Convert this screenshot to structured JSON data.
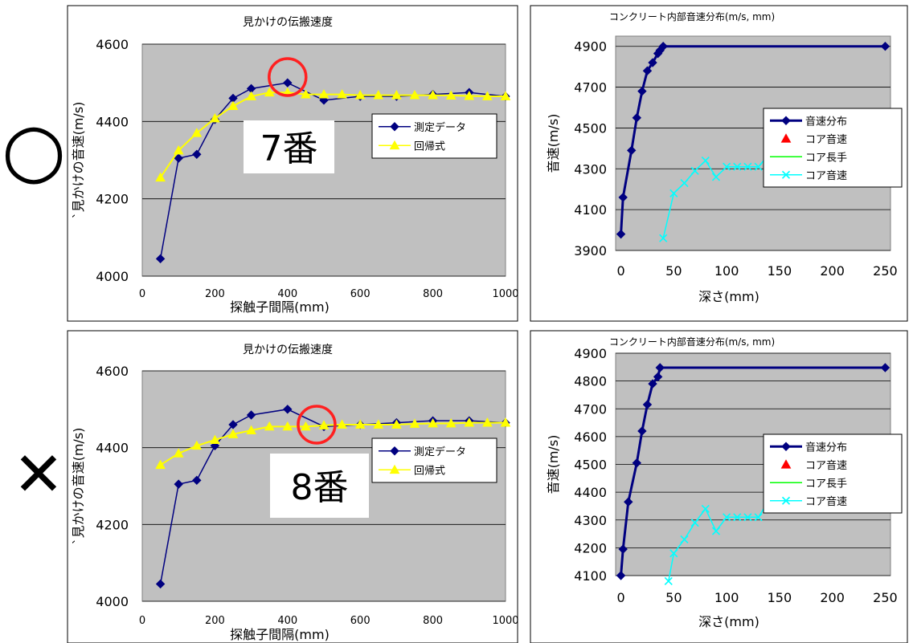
{
  "markers": {
    "good": "○",
    "bad": "✕"
  },
  "chart_data": [
    {
      "id": "c1",
      "type": "line",
      "title": "見かけの伝搬速度",
      "xlabel": "探触子間隔(mm)",
      "ylabel": "`見かけの音速(m/s)",
      "xlim": [
        0,
        1000
      ],
      "ylim": [
        4000,
        4600
      ],
      "xticks": [
        0,
        200,
        400,
        600,
        800,
        1000
      ],
      "yticks": [
        4000,
        4200,
        4400,
        4600
      ],
      "grid": true,
      "legend": "top-right",
      "series": [
        {
          "name": "測定データ",
          "color": "#000080",
          "marker": "diamond",
          "x": [
            50,
            100,
            150,
            200,
            250,
            300,
            400,
            500,
            600,
            700,
            800,
            900,
            1000
          ],
          "y": [
            4045,
            4305,
            4315,
            4405,
            4460,
            4485,
            4500,
            4455,
            4465,
            4465,
            4470,
            4475,
            4465
          ]
        },
        {
          "name": "回帰式",
          "color": "#ffff00",
          "marker": "triangle",
          "x": [
            50,
            100,
            150,
            200,
            250,
            300,
            350,
            400,
            450,
            500,
            550,
            600,
            650,
            700,
            750,
            800,
            850,
            900,
            950,
            1000
          ],
          "y": [
            4255,
            4325,
            4370,
            4408,
            4440,
            4465,
            4475,
            4475,
            4470,
            4470,
            4470,
            4468,
            4468,
            4468,
            4468,
            4468,
            4467,
            4466,
            4465,
            4465
          ]
        }
      ],
      "annotation": {
        "label": "7番",
        "circle_x": 400,
        "circle_y": 4515
      }
    },
    {
      "id": "c2",
      "type": "line",
      "title": "コンクリート内部音速分布(m/s, mm)",
      "xlabel": "深さ(mm)",
      "ylabel": "音速(m/s)",
      "xlim": [
        -5,
        255
      ],
      "ylim": [
        3900,
        4950
      ],
      "xticks": [
        0,
        50,
        100,
        150,
        200,
        250
      ],
      "yticks": [
        3900,
        4100,
        4300,
        4500,
        4700,
        4900
      ],
      "grid": true,
      "legend": "right",
      "series": [
        {
          "name": "音速分布",
          "color": "#000080",
          "marker": "diamond",
          "x": [
            0,
            2,
            10,
            15,
            20,
            25,
            30,
            35,
            37,
            40,
            250
          ],
          "y": [
            3980,
            4160,
            4390,
            4550,
            4680,
            4780,
            4820,
            4865,
            4880,
            4900,
            4900
          ]
        },
        {
          "name": "コア音速",
          "color": "#ff0000",
          "marker": "triangle",
          "x": [],
          "y": []
        },
        {
          "name": "コア長手",
          "color": "#00ff00",
          "marker": "none",
          "x": [],
          "y": []
        },
        {
          "name": "コア音速",
          "color": "#00ffff",
          "marker": "x",
          "x": [
            40,
            50,
            60,
            70,
            80,
            90,
            100,
            110,
            120,
            130,
            140,
            150
          ],
          "y": [
            3960,
            4180,
            4230,
            4290,
            4340,
            4260,
            4310,
            4310,
            4310,
            4310,
            4370,
            4370
          ]
        }
      ]
    },
    {
      "id": "c3",
      "type": "line",
      "title": "見かけの伝搬速度",
      "xlabel": "探触子間隔(mm)",
      "ylabel": "`見かけの音速(m/s)",
      "xlim": [
        0,
        1000
      ],
      "ylim": [
        4000,
        4600
      ],
      "xticks": [
        0,
        200,
        400,
        600,
        800,
        1000
      ],
      "yticks": [
        4000,
        4200,
        4400,
        4600
      ],
      "grid": true,
      "legend": "top-right",
      "series": [
        {
          "name": "測定データ",
          "color": "#000080",
          "marker": "diamond",
          "x": [
            50,
            100,
            150,
            200,
            250,
            300,
            400,
            500,
            600,
            700,
            800,
            900,
            1000
          ],
          "y": [
            4045,
            4305,
            4315,
            4405,
            4460,
            4485,
            4500,
            4455,
            4460,
            4465,
            4470,
            4470,
            4465
          ]
        },
        {
          "name": "回帰式",
          "color": "#ffff00",
          "marker": "triangle",
          "x": [
            50,
            100,
            150,
            200,
            250,
            300,
            350,
            400,
            450,
            500,
            550,
            600,
            650,
            700,
            750,
            800,
            850,
            900,
            950,
            1000
          ],
          "y": [
            4355,
            4385,
            4405,
            4420,
            4435,
            4445,
            4455,
            4455,
            4455,
            4458,
            4460,
            4460,
            4460,
            4460,
            4462,
            4463,
            4463,
            4465,
            4465,
            4465
          ]
        }
      ],
      "annotation": {
        "label": "8番",
        "circle_x": 480,
        "circle_y": 4460
      }
    },
    {
      "id": "c4",
      "type": "line",
      "title": "コンクリート内部音速分布(m/s, mm)",
      "xlabel": "深さ(mm)",
      "ylabel": "音速(m/s)",
      "xlim": [
        -5,
        255
      ],
      "ylim": [
        4100,
        4900
      ],
      "xticks": [
        0,
        50,
        100,
        150,
        200,
        250
      ],
      "yticks": [
        4100,
        4200,
        4300,
        4400,
        4500,
        4600,
        4700,
        4800,
        4900
      ],
      "grid": true,
      "legend": "right",
      "series": [
        {
          "name": "音速分布",
          "color": "#000080",
          "marker": "diamond",
          "x": [
            0,
            2,
            7,
            15,
            20,
            25,
            30,
            35,
            37,
            250
          ],
          "y": [
            4100,
            4195,
            4365,
            4505,
            4620,
            4715,
            4790,
            4815,
            4848,
            4848
          ]
        },
        {
          "name": "コア音速",
          "color": "#ff0000",
          "marker": "triangle",
          "x": [],
          "y": []
        },
        {
          "name": "コア長手",
          "color": "#00ff00",
          "marker": "none",
          "x": [],
          "y": []
        },
        {
          "name": "コア音速",
          "color": "#00ffff",
          "marker": "x",
          "x": [
            45,
            50,
            60,
            70,
            80,
            90,
            100,
            110,
            120,
            130,
            140,
            150
          ],
          "y": [
            4080,
            4180,
            4230,
            4290,
            4340,
            4260,
            4310,
            4310,
            4310,
            4310,
            4370,
            4370
          ]
        }
      ]
    }
  ]
}
